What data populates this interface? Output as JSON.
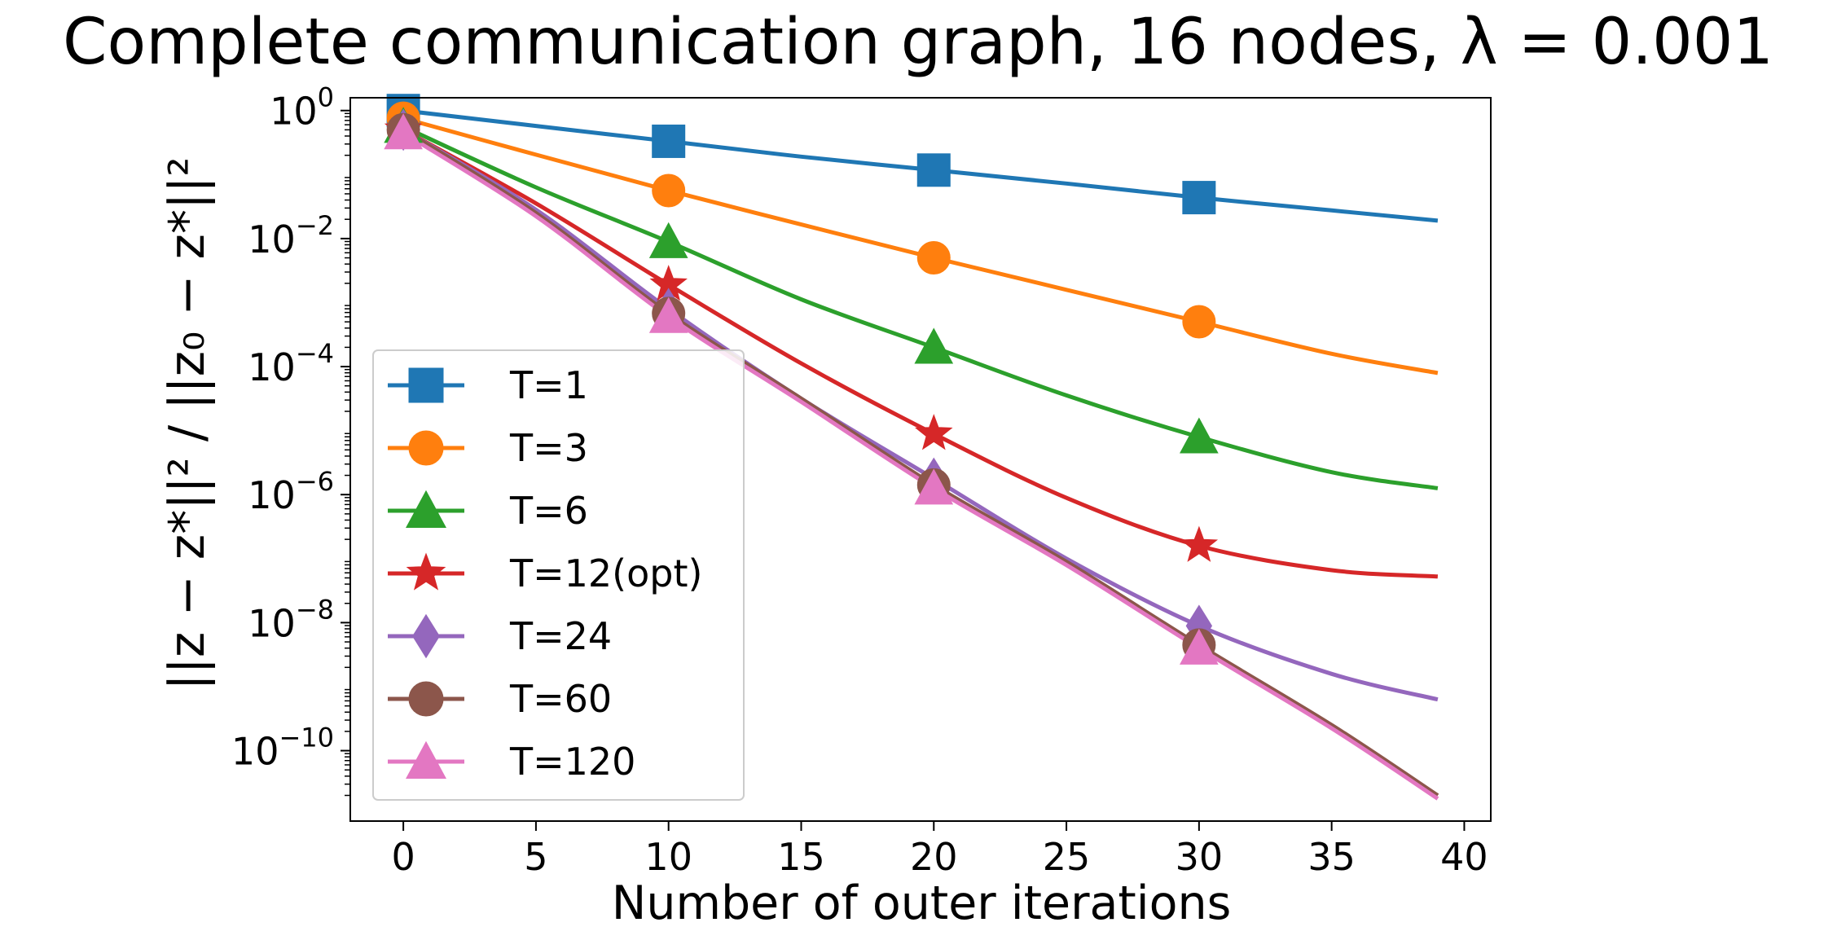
{
  "chart_data": {
    "type": "line",
    "title": "Complete communication graph, 16 nodes, λ = 0.001",
    "xlabel": "Number of outer iterations",
    "ylabel": "||z − z*||² / ||z₀ − z*||²",
    "yscale": "log",
    "xlim": [
      -2,
      41
    ],
    "ylim_exp": [
      -11.1,
      0.2
    ],
    "grid": false,
    "legend_position": "lower-left",
    "x_ticks": [
      0,
      5,
      10,
      15,
      20,
      25,
      30,
      35,
      40
    ],
    "x_tick_labels": [
      "0",
      "5",
      "10",
      "15",
      "20",
      "25",
      "30",
      "35",
      "40"
    ],
    "y_ticks_exp": [
      0,
      -2,
      -4,
      -6,
      -8,
      -10
    ],
    "y_tick_labels": [
      {
        "base": "10",
        "exp": "0"
      },
      {
        "base": "10",
        "exp": "−2"
      },
      {
        "base": "10",
        "exp": "−4"
      },
      {
        "base": "10",
        "exp": "−6"
      },
      {
        "base": "10",
        "exp": "−8"
      },
      {
        "base": "10",
        "exp": "−10"
      }
    ],
    "series": [
      {
        "name": "T=1",
        "color": "#1f77b4",
        "marker": "square",
        "x": [
          0,
          5,
          10,
          15,
          20,
          25,
          30,
          35,
          39
        ],
        "log10_y": [
          0.0,
          -0.24,
          -0.48,
          -0.72,
          -0.93,
          -1.14,
          -1.36,
          -1.56,
          -1.72
        ],
        "marker_x": [
          0,
          10,
          20,
          30
        ],
        "marker_log10_y": [
          0.0,
          -0.48,
          -0.93,
          -1.36
        ]
      },
      {
        "name": "T=3",
        "color": "#ff7f0e",
        "marker": "circle",
        "x": [
          0,
          5,
          10,
          15,
          20,
          25,
          30,
          35,
          39
        ],
        "log10_y": [
          -0.12,
          -0.69,
          -1.25,
          -1.78,
          -2.3,
          -2.8,
          -3.3,
          -3.8,
          -4.1
        ],
        "marker_x": [
          0,
          10,
          20,
          30
        ],
        "marker_log10_y": [
          -0.12,
          -1.25,
          -2.3,
          -3.3
        ]
      },
      {
        "name": "T=6",
        "color": "#2ca02c",
        "marker": "triangle-up",
        "x": [
          0,
          5,
          10,
          15,
          20,
          25,
          30,
          35,
          39
        ],
        "log10_y": [
          -0.25,
          -1.2,
          -2.05,
          -2.95,
          -3.7,
          -4.45,
          -5.1,
          -5.65,
          -5.9
        ],
        "marker_x": [
          0,
          10,
          20,
          30
        ],
        "marker_log10_y": [
          -0.25,
          -2.05,
          -3.7,
          -5.1
        ]
      },
      {
        "name": "T=12(opt)",
        "color": "#d62728",
        "marker": "star",
        "x": [
          0,
          5,
          10,
          15,
          20,
          25,
          30,
          35,
          39
        ],
        "log10_y": [
          -0.3,
          -1.45,
          -2.72,
          -3.95,
          -5.05,
          -6.05,
          -6.8,
          -7.18,
          -7.28
        ],
        "marker_x": [
          0,
          10,
          20,
          30
        ],
        "marker_log10_y": [
          -0.3,
          -2.72,
          -5.05,
          -6.8
        ]
      },
      {
        "name": "T=24",
        "color": "#9467bd",
        "marker": "diamond",
        "x": [
          0,
          5,
          10,
          15,
          20,
          25,
          30,
          35,
          39
        ],
        "log10_y": [
          -0.3,
          -1.55,
          -3.1,
          -4.5,
          -5.75,
          -7.0,
          -8.05,
          -8.8,
          -9.2
        ],
        "marker_x": [
          0,
          10,
          20,
          30
        ],
        "marker_log10_y": [
          -0.3,
          -3.1,
          -5.75,
          -8.05
        ]
      },
      {
        "name": "T=60",
        "color": "#8c564b",
        "marker": "circle",
        "x": [
          0,
          5,
          10,
          15,
          20,
          25,
          30,
          35,
          39
        ],
        "log10_y": [
          -0.3,
          -1.6,
          -3.17,
          -4.5,
          -5.85,
          -7.05,
          -8.35,
          -9.6,
          -10.7
        ],
        "marker_x": [
          0,
          10,
          20,
          30
        ],
        "marker_log10_y": [
          -0.3,
          -3.17,
          -5.85,
          -8.35
        ]
      },
      {
        "name": "T=120",
        "color": "#e377c2",
        "marker": "triangle-up",
        "x": [
          0,
          5,
          10,
          15,
          20,
          25,
          30,
          35,
          39
        ],
        "log10_y": [
          -0.35,
          -1.65,
          -3.22,
          -4.55,
          -5.9,
          -7.1,
          -8.4,
          -9.65,
          -10.75
        ],
        "marker_x": [
          0,
          10,
          20,
          30
        ],
        "marker_log10_y": [
          -0.35,
          -3.22,
          -5.9,
          -8.4
        ]
      }
    ]
  }
}
